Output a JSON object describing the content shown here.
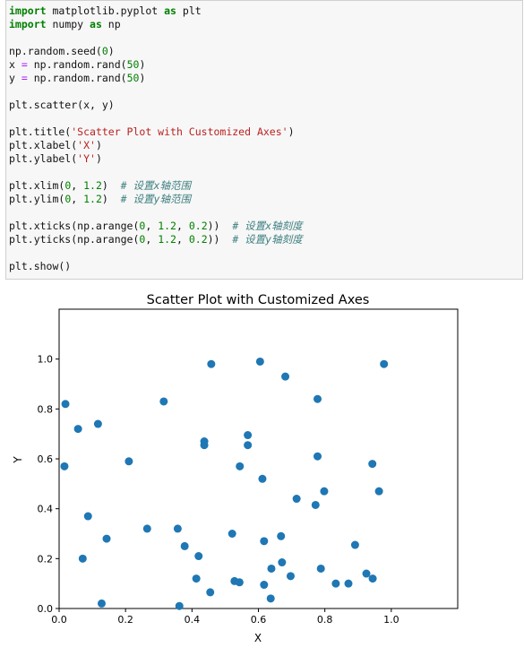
{
  "code": {
    "lines": [
      [
        {
          "t": "import",
          "c": "kw"
        },
        {
          "t": " matplotlib.pyplot ",
          "c": ""
        },
        {
          "t": "as",
          "c": "kw"
        },
        {
          "t": " plt",
          "c": ""
        }
      ],
      [
        {
          "t": "import",
          "c": "kw"
        },
        {
          "t": " numpy ",
          "c": ""
        },
        {
          "t": "as",
          "c": "kw"
        },
        {
          "t": " np",
          "c": ""
        }
      ],
      [],
      [
        {
          "t": "np.random.seed(",
          "c": ""
        },
        {
          "t": "0",
          "c": "num"
        },
        {
          "t": ")",
          "c": ""
        }
      ],
      [
        {
          "t": "x ",
          "c": ""
        },
        {
          "t": "=",
          "c": "op"
        },
        {
          "t": " np.random.rand(",
          "c": ""
        },
        {
          "t": "50",
          "c": "num"
        },
        {
          "t": ")",
          "c": ""
        }
      ],
      [
        {
          "t": "y ",
          "c": ""
        },
        {
          "t": "=",
          "c": "op"
        },
        {
          "t": " np.random.rand(",
          "c": ""
        },
        {
          "t": "50",
          "c": "num"
        },
        {
          "t": ")",
          "c": ""
        }
      ],
      [],
      [
        {
          "t": "plt.scatter(x, y)",
          "c": ""
        }
      ],
      [],
      [
        {
          "t": "plt.title(",
          "c": ""
        },
        {
          "t": "'Scatter Plot with Customized Axes'",
          "c": "str"
        },
        {
          "t": ")",
          "c": ""
        }
      ],
      [
        {
          "t": "plt.xlabel(",
          "c": ""
        },
        {
          "t": "'X'",
          "c": "str"
        },
        {
          "t": ")",
          "c": ""
        }
      ],
      [
        {
          "t": "plt.ylabel(",
          "c": ""
        },
        {
          "t": "'Y'",
          "c": "str"
        },
        {
          "t": ")",
          "c": ""
        }
      ],
      [],
      [
        {
          "t": "plt.xlim(",
          "c": ""
        },
        {
          "t": "0",
          "c": "num"
        },
        {
          "t": ", ",
          "c": ""
        },
        {
          "t": "1.2",
          "c": "num"
        },
        {
          "t": ")  ",
          "c": ""
        },
        {
          "t": "# 设置x轴范围",
          "c": "cmt"
        }
      ],
      [
        {
          "t": "plt.ylim(",
          "c": ""
        },
        {
          "t": "0",
          "c": "num"
        },
        {
          "t": ", ",
          "c": ""
        },
        {
          "t": "1.2",
          "c": "num"
        },
        {
          "t": ")  ",
          "c": ""
        },
        {
          "t": "# 设置y轴范围",
          "c": "cmt"
        }
      ],
      [],
      [
        {
          "t": "plt.xticks(np.arange(",
          "c": ""
        },
        {
          "t": "0",
          "c": "num"
        },
        {
          "t": ", ",
          "c": ""
        },
        {
          "t": "1.2",
          "c": "num"
        },
        {
          "t": ", ",
          "c": ""
        },
        {
          "t": "0.2",
          "c": "num"
        },
        {
          "t": "))  ",
          "c": ""
        },
        {
          "t": "# 设置x轴刻度",
          "c": "cmt"
        }
      ],
      [
        {
          "t": "plt.yticks(np.arange(",
          "c": ""
        },
        {
          "t": "0",
          "c": "num"
        },
        {
          "t": ", ",
          "c": ""
        },
        {
          "t": "1.2",
          "c": "num"
        },
        {
          "t": ", ",
          "c": ""
        },
        {
          "t": "0.2",
          "c": "num"
        },
        {
          "t": "))  ",
          "c": ""
        },
        {
          "t": "# 设置y轴刻度",
          "c": "cmt"
        }
      ],
      [],
      [
        {
          "t": "plt.show()",
          "c": ""
        }
      ]
    ]
  },
  "chart_data": {
    "type": "scatter",
    "title": "Scatter Plot with Customized Axes",
    "xlabel": "X",
    "ylabel": "Y",
    "xlim": [
      0,
      1.2
    ],
    "ylim": [
      0,
      1.2
    ],
    "xticks": [
      "0.0",
      "0.2",
      "0.4",
      "0.6",
      "0.8",
      "1.0"
    ],
    "yticks": [
      "0.0",
      "0.2",
      "0.4",
      "0.6",
      "0.8",
      "1.0"
    ],
    "grid": false,
    "color": "#1f77b4",
    "points": [
      [
        0.019,
        0.82
      ],
      [
        0.016,
        0.57
      ],
      [
        0.057,
        0.72
      ],
      [
        0.117,
        0.74
      ],
      [
        0.071,
        0.2
      ],
      [
        0.087,
        0.37
      ],
      [
        0.143,
        0.28
      ],
      [
        0.128,
        0.02
      ],
      [
        0.21,
        0.59
      ],
      [
        0.265,
        0.32
      ],
      [
        0.315,
        0.83
      ],
      [
        0.357,
        0.32
      ],
      [
        0.378,
        0.25
      ],
      [
        0.362,
        0.01
      ],
      [
        0.413,
        0.12
      ],
      [
        0.42,
        0.21
      ],
      [
        0.437,
        0.67
      ],
      [
        0.437,
        0.655
      ],
      [
        0.458,
        0.98
      ],
      [
        0.455,
        0.065
      ],
      [
        0.521,
        0.3
      ],
      [
        0.528,
        0.11
      ],
      [
        0.544,
        0.57
      ],
      [
        0.543,
        0.105
      ],
      [
        0.568,
        0.695
      ],
      [
        0.568,
        0.655
      ],
      [
        0.605,
        0.99
      ],
      [
        0.612,
        0.52
      ],
      [
        0.617,
        0.27
      ],
      [
        0.617,
        0.095
      ],
      [
        0.639,
        0.16
      ],
      [
        0.637,
        0.04
      ],
      [
        0.668,
        0.29
      ],
      [
        0.671,
        0.185
      ],
      [
        0.681,
        0.93
      ],
      [
        0.697,
        0.13
      ],
      [
        0.715,
        0.44
      ],
      [
        0.772,
        0.415
      ],
      [
        0.778,
        0.84
      ],
      [
        0.778,
        0.61
      ],
      [
        0.788,
        0.16
      ],
      [
        0.798,
        0.47
      ],
      [
        0.833,
        0.1
      ],
      [
        0.871,
        0.1
      ],
      [
        0.891,
        0.255
      ],
      [
        0.925,
        0.14
      ],
      [
        0.943,
        0.58
      ],
      [
        0.944,
        0.12
      ],
      [
        0.963,
        0.47
      ],
      [
        0.978,
        0.98
      ]
    ]
  }
}
